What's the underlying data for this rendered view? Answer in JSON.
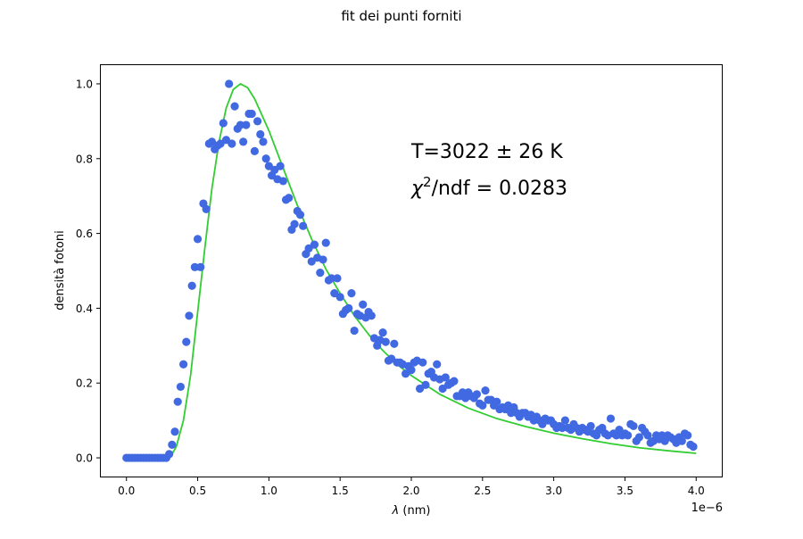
{
  "chart_data": {
    "type": "scatter",
    "title": "fit dei punti forniti",
    "xlabel_symbol": "λ",
    "xlabel_unit": " (nm)",
    "ylabel": "densità fotoni",
    "x_offset_label": "1e−6",
    "xlim": [
      -1.8e-07,
      4.18e-06
    ],
    "ylim": [
      -0.05,
      1.05
    ],
    "grid": false,
    "x_ticks": [
      0,
      5e-07,
      1e-06,
      1.5e-06,
      2e-06,
      2.5e-06,
      3e-06,
      3.5e-06,
      4e-06
    ],
    "x_tick_labels": [
      "0.0",
      "0.5",
      "1.0",
      "1.5",
      "2.0",
      "2.5",
      "3.0",
      "3.5",
      "4.0"
    ],
    "y_ticks": [
      0,
      0.2,
      0.4,
      0.6,
      0.8,
      1.0
    ],
    "y_tick_labels": [
      "0.0",
      "0.2",
      "0.4",
      "0.6",
      "0.8",
      "1.0"
    ],
    "annotations": {
      "temperature": "T=3022 ± 26 K",
      "chi_symbol": "χ",
      "chi_exp": "2",
      "chi_rest": "/ndf = 0.0283"
    },
    "series": [
      {
        "kind": "scatter",
        "color": "#4169e1",
        "points": [
          [
            0.0,
            0.0
          ],
          [
            2e-08,
            0.0
          ],
          [
            4e-08,
            0.0
          ],
          [
            6e-08,
            0.0
          ],
          [
            8e-08,
            0.0
          ],
          [
            1e-07,
            0.0
          ],
          [
            1.2e-07,
            0.0
          ],
          [
            1.4e-07,
            0.0
          ],
          [
            1.6e-07,
            0.0
          ],
          [
            1.8e-07,
            0.0
          ],
          [
            2e-07,
            0.0
          ],
          [
            2.2e-07,
            0.0
          ],
          [
            2.4e-07,
            0.0
          ],
          [
            2.6e-07,
            0.0
          ],
          [
            2.8e-07,
            0.0
          ],
          [
            3e-07,
            0.01
          ],
          [
            3.2e-07,
            0.035
          ],
          [
            3.4e-07,
            0.07
          ],
          [
            3.6e-07,
            0.15
          ],
          [
            3.8e-07,
            0.19
          ],
          [
            4e-07,
            0.25
          ],
          [
            4.2e-07,
            0.31
          ],
          [
            4.4e-07,
            0.38
          ],
          [
            4.6e-07,
            0.46
          ],
          [
            4.8e-07,
            0.51
          ],
          [
            5e-07,
            0.585
          ],
          [
            5.2e-07,
            0.51
          ],
          [
            5.4e-07,
            0.68
          ],
          [
            5.6e-07,
            0.665
          ],
          [
            5.8e-07,
            0.84
          ],
          [
            6e-07,
            0.845
          ],
          [
            6.2e-07,
            0.825
          ],
          [
            6.4e-07,
            0.835
          ],
          [
            6.6e-07,
            0.84
          ],
          [
            6.8e-07,
            0.895
          ],
          [
            7e-07,
            0.85
          ],
          [
            7.2e-07,
            1.0
          ],
          [
            7.4e-07,
            0.84
          ],
          [
            7.6e-07,
            0.94
          ],
          [
            7.8e-07,
            0.88
          ],
          [
            8e-07,
            0.89
          ],
          [
            8.2e-07,
            0.845
          ],
          [
            8.4e-07,
            0.89
          ],
          [
            8.6e-07,
            0.92
          ],
          [
            8.8e-07,
            0.92
          ],
          [
            9e-07,
            0.82
          ],
          [
            9.2e-07,
            0.9
          ],
          [
            9.4e-07,
            0.865
          ],
          [
            9.6e-07,
            0.845
          ],
          [
            9.8e-07,
            0.8
          ],
          [
            1e-06,
            0.78
          ],
          [
            1.02e-06,
            0.755
          ],
          [
            1.04e-06,
            0.77
          ],
          [
            1.06e-06,
            0.745
          ],
          [
            1.08e-06,
            0.78
          ],
          [
            1.1e-06,
            0.74
          ],
          [
            1.12e-06,
            0.69
          ],
          [
            1.14e-06,
            0.695
          ],
          [
            1.16e-06,
            0.61
          ],
          [
            1.18e-06,
            0.625
          ],
          [
            1.2e-06,
            0.66
          ],
          [
            1.22e-06,
            0.65
          ],
          [
            1.24e-06,
            0.62
          ],
          [
            1.26e-06,
            0.545
          ],
          [
            1.28e-06,
            0.56
          ],
          [
            1.3e-06,
            0.525
          ],
          [
            1.32e-06,
            0.57
          ],
          [
            1.34e-06,
            0.535
          ],
          [
            1.36e-06,
            0.495
          ],
          [
            1.38e-06,
            0.53
          ],
          [
            1.4e-06,
            0.575
          ],
          [
            1.42e-06,
            0.475
          ],
          [
            1.44e-06,
            0.48
          ],
          [
            1.46e-06,
            0.44
          ],
          [
            1.48e-06,
            0.48
          ],
          [
            1.5e-06,
            0.43
          ],
          [
            1.52e-06,
            0.385
          ],
          [
            1.54e-06,
            0.395
          ],
          [
            1.56e-06,
            0.4
          ],
          [
            1.58e-06,
            0.44
          ],
          [
            1.6e-06,
            0.34
          ],
          [
            1.62e-06,
            0.385
          ],
          [
            1.64e-06,
            0.38
          ],
          [
            1.66e-06,
            0.41
          ],
          [
            1.68e-06,
            0.375
          ],
          [
            1.7e-06,
            0.39
          ],
          [
            1.72e-06,
            0.38
          ],
          [
            1.74e-06,
            0.32
          ],
          [
            1.76e-06,
            0.3
          ],
          [
            1.78e-06,
            0.315
          ],
          [
            1.8e-06,
            0.335
          ],
          [
            1.82e-06,
            0.31
          ],
          [
            1.84e-06,
            0.26
          ],
          [
            1.86e-06,
            0.265
          ],
          [
            1.88e-06,
            0.305
          ],
          [
            1.9e-06,
            0.255
          ],
          [
            1.92e-06,
            0.255
          ],
          [
            1.94e-06,
            0.25
          ],
          [
            1.96e-06,
            0.225
          ],
          [
            1.98e-06,
            0.245
          ],
          [
            2e-06,
            0.235
          ],
          [
            2.02e-06,
            0.255
          ],
          [
            2.04e-06,
            0.26
          ],
          [
            2.06e-06,
            0.185
          ],
          [
            2.08e-06,
            0.255
          ],
          [
            2.1e-06,
            0.195
          ],
          [
            2.12e-06,
            0.225
          ],
          [
            2.14e-06,
            0.23
          ],
          [
            2.16e-06,
            0.215
          ],
          [
            2.18e-06,
            0.25
          ],
          [
            2.2e-06,
            0.21
          ],
          [
            2.22e-06,
            0.185
          ],
          [
            2.24e-06,
            0.215
          ],
          [
            2.26e-06,
            0.195
          ],
          [
            2.28e-06,
            0.2
          ],
          [
            2.3e-06,
            0.205
          ],
          [
            2.32e-06,
            0.165
          ],
          [
            2.34e-06,
            0.165
          ],
          [
            2.36e-06,
            0.175
          ],
          [
            2.38e-06,
            0.16
          ],
          [
            2.4e-06,
            0.175
          ],
          [
            2.42e-06,
            0.165
          ],
          [
            2.44e-06,
            0.16
          ],
          [
            2.46e-06,
            0.17
          ],
          [
            2.48e-06,
            0.145
          ],
          [
            2.5e-06,
            0.14
          ],
          [
            2.52e-06,
            0.18
          ],
          [
            2.54e-06,
            0.155
          ],
          [
            2.56e-06,
            0.155
          ],
          [
            2.58e-06,
            0.14
          ],
          [
            2.6e-06,
            0.15
          ],
          [
            2.62e-06,
            0.13
          ],
          [
            2.64e-06,
            0.135
          ],
          [
            2.66e-06,
            0.13
          ],
          [
            2.68e-06,
            0.14
          ],
          [
            2.7e-06,
            0.12
          ],
          [
            2.72e-06,
            0.135
          ],
          [
            2.74e-06,
            0.12
          ],
          [
            2.76e-06,
            0.11
          ],
          [
            2.78e-06,
            0.12
          ],
          [
            2.8e-06,
            0.12
          ],
          [
            2.82e-06,
            0.11
          ],
          [
            2.84e-06,
            0.115
          ],
          [
            2.86e-06,
            0.1
          ],
          [
            2.88e-06,
            0.11
          ],
          [
            2.9e-06,
            0.1
          ],
          [
            2.92e-06,
            0.09
          ],
          [
            2.94e-06,
            0.105
          ],
          [
            2.96e-06,
            0.1
          ],
          [
            2.98e-06,
            0.1
          ],
          [
            3e-06,
            0.09
          ],
          [
            3.02e-06,
            0.08
          ],
          [
            3.04e-06,
            0.085
          ],
          [
            3.06e-06,
            0.08
          ],
          [
            3.08e-06,
            0.1
          ],
          [
            3.1e-06,
            0.08
          ],
          [
            3.12e-06,
            0.075
          ],
          [
            3.14e-06,
            0.09
          ],
          [
            3.16e-06,
            0.08
          ],
          [
            3.18e-06,
            0.07
          ],
          [
            3.2e-06,
            0.08
          ],
          [
            3.22e-06,
            0.075
          ],
          [
            3.24e-06,
            0.07
          ],
          [
            3.26e-06,
            0.085
          ],
          [
            3.28e-06,
            0.065
          ],
          [
            3.3e-06,
            0.06
          ],
          [
            3.32e-06,
            0.075
          ],
          [
            3.34e-06,
            0.08
          ],
          [
            3.36e-06,
            0.065
          ],
          [
            3.38e-06,
            0.06
          ],
          [
            3.4e-06,
            0.105
          ],
          [
            3.42e-06,
            0.065
          ],
          [
            3.44e-06,
            0.06
          ],
          [
            3.46e-06,
            0.075
          ],
          [
            3.48e-06,
            0.06
          ],
          [
            3.5e-06,
            0.065
          ],
          [
            3.52e-06,
            0.06
          ],
          [
            3.54e-06,
            0.09
          ],
          [
            3.56e-06,
            0.085
          ],
          [
            3.58e-06,
            0.045
          ],
          [
            3.6e-06,
            0.055
          ],
          [
            3.62e-06,
            0.08
          ],
          [
            3.64e-06,
            0.07
          ],
          [
            3.66e-06,
            0.06
          ],
          [
            3.68e-06,
            0.04
          ],
          [
            3.7e-06,
            0.045
          ],
          [
            3.72e-06,
            0.06
          ],
          [
            3.74e-06,
            0.05
          ],
          [
            3.76e-06,
            0.06
          ],
          [
            3.78e-06,
            0.045
          ],
          [
            3.8e-06,
            0.06
          ],
          [
            3.82e-06,
            0.055
          ],
          [
            3.84e-06,
            0.05
          ],
          [
            3.86e-06,
            0.04
          ],
          [
            3.88e-06,
            0.055
          ],
          [
            3.9e-06,
            0.045
          ],
          [
            3.92e-06,
            0.065
          ],
          [
            3.94e-06,
            0.06
          ],
          [
            3.96e-06,
            0.035
          ],
          [
            3.98e-06,
            0.03
          ]
        ]
      },
      {
        "kind": "line",
        "color": "#32cd32",
        "points": [
          [
            0.0,
            0.0
          ],
          [
            1e-07,
            0.0
          ],
          [
            2e-07,
            0.0
          ],
          [
            2.5e-07,
            0.0
          ],
          [
            2.8e-07,
            0.001
          ],
          [
            3e-07,
            0.004
          ],
          [
            3.2e-07,
            0.01
          ],
          [
            3.5e-07,
            0.03
          ],
          [
            4e-07,
            0.1
          ],
          [
            4.5e-07,
            0.22
          ],
          [
            5e-07,
            0.39
          ],
          [
            5.5e-07,
            0.56
          ],
          [
            6e-07,
            0.72
          ],
          [
            6.5e-07,
            0.845
          ],
          [
            7e-07,
            0.935
          ],
          [
            7.5e-07,
            0.985
          ],
          [
            8e-07,
            1.0
          ],
          [
            8.5e-07,
            0.99
          ],
          [
            9e-07,
            0.96
          ],
          [
            1e-06,
            0.875
          ],
          [
            1.1e-06,
            0.775
          ],
          [
            1.2e-06,
            0.675
          ],
          [
            1.3e-06,
            0.585
          ],
          [
            1.4e-06,
            0.505
          ],
          [
            1.5e-06,
            0.44
          ],
          [
            1.6e-06,
            0.38
          ],
          [
            1.7e-06,
            0.33
          ],
          [
            1.8e-06,
            0.287
          ],
          [
            1.9e-06,
            0.25
          ],
          [
            2e-06,
            0.22
          ],
          [
            2.2e-06,
            0.17
          ],
          [
            2.4e-06,
            0.133
          ],
          [
            2.6e-06,
            0.105
          ],
          [
            2.8e-06,
            0.084
          ],
          [
            3e-06,
            0.066
          ],
          [
            3.2e-06,
            0.051
          ],
          [
            3.4e-06,
            0.038
          ],
          [
            3.6e-06,
            0.027
          ],
          [
            3.8e-06,
            0.019
          ],
          [
            4e-06,
            0.012
          ]
        ]
      }
    ]
  }
}
